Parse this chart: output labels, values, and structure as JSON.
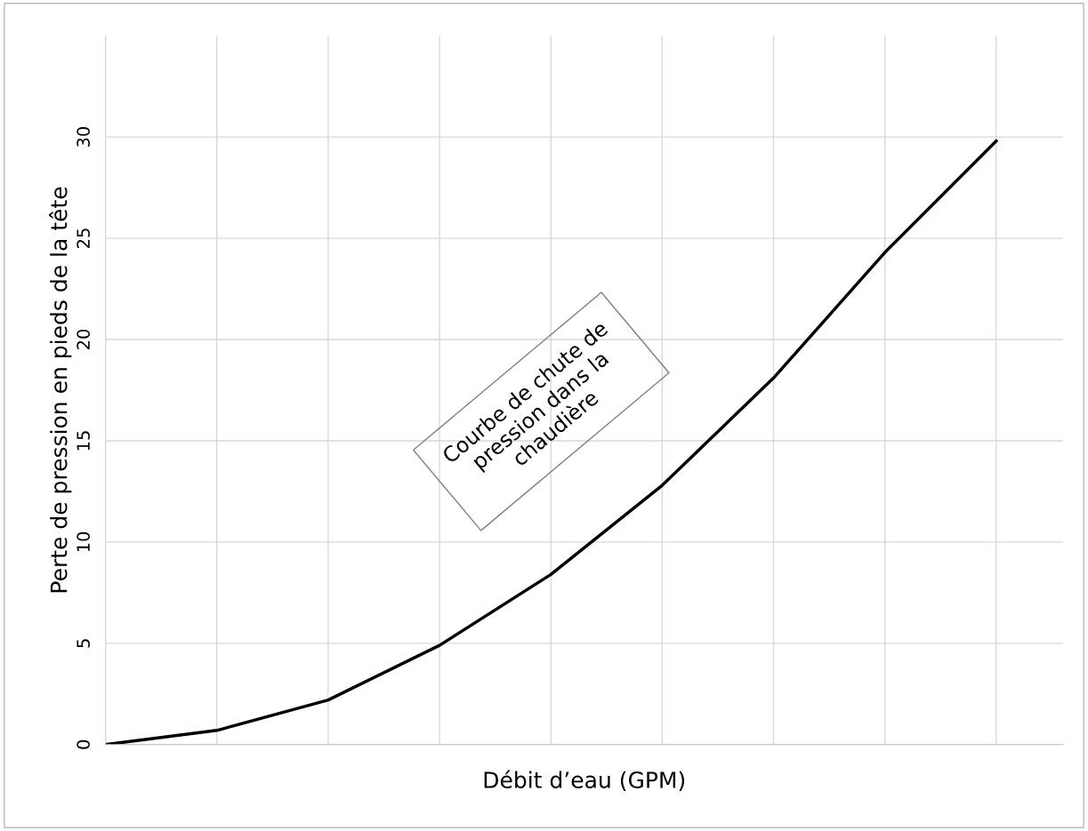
{
  "chart_data": {
    "type": "line",
    "xlabel": "Débit d’eau (GPM)",
    "ylabel": "Perte de pression en pieds de la tête",
    "categories": [
      null,
      null,
      null,
      null,
      null,
      null,
      null,
      null,
      null
    ],
    "series": [
      {
        "color": "#000000",
        "values": [
          0,
          0.7,
          2.2,
          4.9,
          8.4,
          12.8,
          18.1,
          24.3,
          29.8
        ]
      }
    ],
    "ylim": [
      0,
      35
    ],
    "yticks": [
      0,
      5,
      10,
      15,
      20,
      25,
      30
    ],
    "grid": true,
    "marker": "none",
    "line_style": "solid",
    "annotations": [
      "Courbe de chute de\npression dans la\nchaudière"
    ]
  }
}
